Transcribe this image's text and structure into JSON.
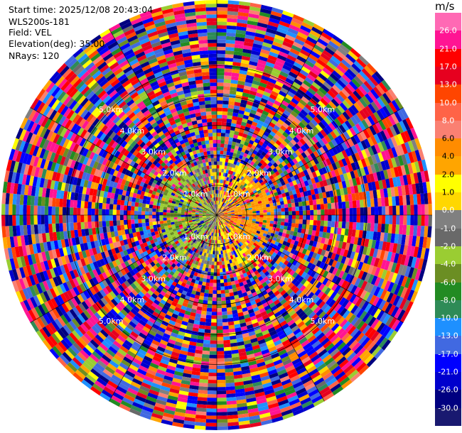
{
  "info": {
    "start_time": "Start time: 2025/12/08 20:43:04",
    "station": "WLS200s-181",
    "field": "Field: VEL",
    "elevation": "Elevation(deg): 35.00",
    "nrays": "NRays: 120"
  },
  "colorbar": {
    "unit": "m/s",
    "ticks": [
      "26.0",
      "21.0",
      "17.0",
      "13.0",
      "10.0",
      "8.0",
      "6.0",
      "4.0",
      "2.0",
      "1.0",
      "0.0",
      "-1.0",
      "-2.0",
      "-4.0",
      "-6.0",
      "-8.0",
      "-10.0",
      "-13.0",
      "-17.0",
      "-21.0",
      "-26.0",
      "-30.0"
    ],
    "colors": [
      "#ff69b4",
      "#ff1493",
      "#ff0000",
      "#e6001f",
      "#ff4500",
      "#ff6347",
      "#fa8072",
      "#ff8c00",
      "#ffa500",
      "#ffff00",
      "#ffd700",
      "#808080",
      "#696969",
      "#9acd32",
      "#6b8e23",
      "#228b22",
      "#2e8b57",
      "#1e90ff",
      "#4169e1",
      "#0000ff",
      "#0000cd",
      "#000080",
      "#191970"
    ]
  },
  "chart_data": {
    "type": "polar_ppi",
    "field": "VEL",
    "units": "m/s",
    "nrays": 120,
    "range_rings_km": [
      1.0,
      2.0,
      3.0,
      4.0,
      5.0
    ],
    "ring_labels": [
      "1.0km",
      "2.0km",
      "3.0km",
      "4.0km",
      "5.0km"
    ],
    "max_range_km": 7.2,
    "levels": [
      -30.0,
      -26.0,
      -21.0,
      -17.0,
      -13.0,
      -10.0,
      -8.0,
      -6.0,
      -4.0,
      -2.0,
      -1.0,
      0.0,
      1.0,
      2.0,
      4.0,
      6.0,
      8.0,
      10.0,
      13.0,
      17.0,
      21.0,
      26.0
    ],
    "near_range_pattern": "yellow/orange positive velocities toward east, blue/green negative toward west",
    "far_range_pattern": "noise-dominated multicolor",
    "grid": true
  }
}
